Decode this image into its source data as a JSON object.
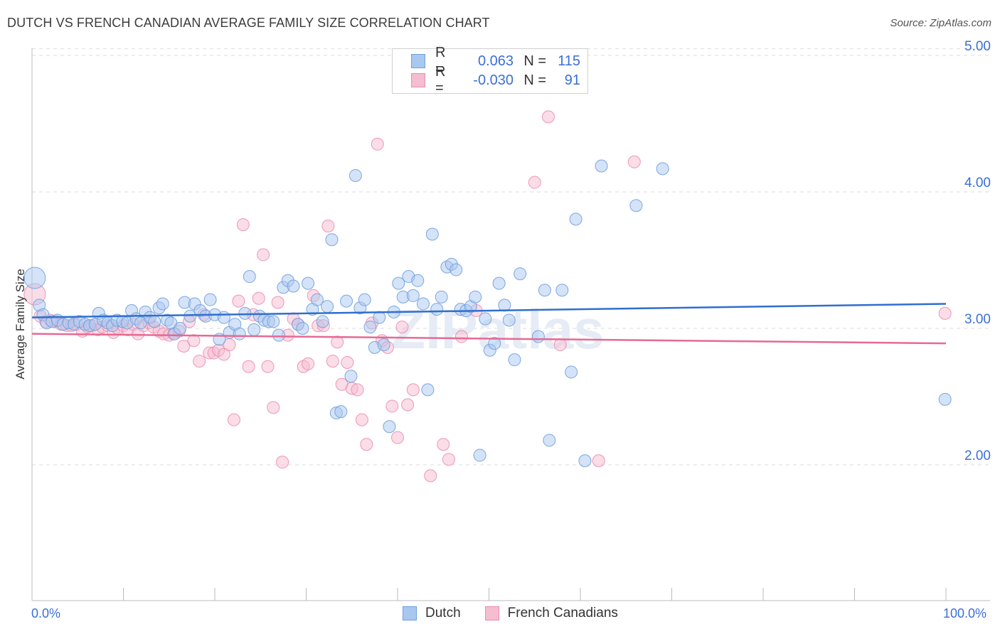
{
  "title": "DUTCH VS FRENCH CANADIAN AVERAGE FAMILY SIZE CORRELATION CHART",
  "source": "Source: ZipAtlas.com",
  "legend": {
    "rows": [
      {
        "r_label": "R =",
        "r_value": "0.063",
        "n_label": "N =",
        "n_value": "115"
      },
      {
        "r_label": "R =",
        "r_value": "-0.030",
        "n_label": "N =",
        "n_value": "91"
      }
    ]
  },
  "bottom_legend": {
    "dutch": "Dutch",
    "french": "French Canadians"
  },
  "colors": {
    "dutch_fill": "#a9c8f0",
    "dutch_stroke": "#6f9fe0",
    "dutch_line": "#2f6fce",
    "french_fill": "#f6bcd0",
    "french_stroke": "#ec8db0",
    "french_line": "#e56a94",
    "axis_text": "#3a6fd8"
  },
  "chart_data": {
    "type": "scatter",
    "title": "DUTCH VS FRENCH CANADIAN AVERAGE FAMILY SIZE CORRELATION CHART",
    "xlabel": "",
    "ylabel": "Average Family Size",
    "x_tick_labels": [
      "0.0%",
      "100.0%"
    ],
    "y_ticks": [
      2.0,
      3.0,
      4.0,
      5.0
    ],
    "y_tick_labels": [
      "2.00",
      "3.00",
      "4.00",
      "5.00"
    ],
    "xlim": [
      0,
      100
    ],
    "ylim": [
      1.0,
      5.05
    ],
    "grid": "horizontal dashed",
    "legend_position": "top-center",
    "watermark": "ZIPatlas",
    "series": [
      {
        "name": "Dutch",
        "trend": [
          [
            0,
            3.08
          ],
          [
            100,
            3.18
          ]
        ],
        "points": [
          [
            0.3,
            3.37
          ],
          [
            0.8,
            3.17
          ],
          [
            1.2,
            3.1
          ],
          [
            1.6,
            3.04
          ],
          [
            2.2,
            3.05
          ],
          [
            2.8,
            3.06
          ],
          [
            3.4,
            3.03
          ],
          [
            4.0,
            3.04
          ],
          [
            4.6,
            3.03
          ],
          [
            5.2,
            3.05
          ],
          [
            5.8,
            3.03
          ],
          [
            6.3,
            3.02
          ],
          [
            6.9,
            3.03
          ],
          [
            7.3,
            3.11
          ],
          [
            7.8,
            3.06
          ],
          [
            8.3,
            3.04
          ],
          [
            8.8,
            3.02
          ],
          [
            9.3,
            3.06
          ],
          [
            9.9,
            3.05
          ],
          [
            10.4,
            3.04
          ],
          [
            10.9,
            3.13
          ],
          [
            11.4,
            3.07
          ],
          [
            11.9,
            3.04
          ],
          [
            12.4,
            3.12
          ],
          [
            12.9,
            3.08
          ],
          [
            13.4,
            3.05
          ],
          [
            13.9,
            3.15
          ],
          [
            14.3,
            3.18
          ],
          [
            14.8,
            3.06
          ],
          [
            15.2,
            3.04
          ],
          [
            15.6,
            2.96
          ],
          [
            16.2,
            3.0
          ],
          [
            16.7,
            3.19
          ],
          [
            17.3,
            3.09
          ],
          [
            17.8,
            3.18
          ],
          [
            18.4,
            3.13
          ],
          [
            19.0,
            3.09
          ],
          [
            19.5,
            3.21
          ],
          [
            20.0,
            3.1
          ],
          [
            20.5,
            2.92
          ],
          [
            21.0,
            3.08
          ],
          [
            21.6,
            2.97
          ],
          [
            22.2,
            3.03
          ],
          [
            22.7,
            2.96
          ],
          [
            23.3,
            3.11
          ],
          [
            23.8,
            3.38
          ],
          [
            24.3,
            2.99
          ],
          [
            24.9,
            3.09
          ],
          [
            25.4,
            3.06
          ],
          [
            25.9,
            3.05
          ],
          [
            26.4,
            3.05
          ],
          [
            27.0,
            2.95
          ],
          [
            27.5,
            3.3
          ],
          [
            28.0,
            3.35
          ],
          [
            28.6,
            3.31
          ],
          [
            29.1,
            3.03
          ],
          [
            29.6,
            3.0
          ],
          [
            30.2,
            3.33
          ],
          [
            30.7,
            3.14
          ],
          [
            31.2,
            3.21
          ],
          [
            31.8,
            3.05
          ],
          [
            32.3,
            3.16
          ],
          [
            32.8,
            3.65
          ],
          [
            33.3,
            2.38
          ],
          [
            33.8,
            2.39
          ],
          [
            34.4,
            3.2
          ],
          [
            34.9,
            2.65
          ],
          [
            35.4,
            4.12
          ],
          [
            35.9,
            3.15
          ],
          [
            36.4,
            3.21
          ],
          [
            37.0,
            3.01
          ],
          [
            37.5,
            2.86
          ],
          [
            38.0,
            3.08
          ],
          [
            38.5,
            2.88
          ],
          [
            39.1,
            2.28
          ],
          [
            39.6,
            3.12
          ],
          [
            40.1,
            3.33
          ],
          [
            40.6,
            3.23
          ],
          [
            41.2,
            3.38
          ],
          [
            41.7,
            3.24
          ],
          [
            42.2,
            3.35
          ],
          [
            42.8,
            3.18
          ],
          [
            43.3,
            2.55
          ],
          [
            43.8,
            3.69
          ],
          [
            44.3,
            3.14
          ],
          [
            44.8,
            3.23
          ],
          [
            45.4,
            3.45
          ],
          [
            45.9,
            3.47
          ],
          [
            46.4,
            3.43
          ],
          [
            46.9,
            3.14
          ],
          [
            47.5,
            3.13
          ],
          [
            48.0,
            3.16
          ],
          [
            48.5,
            3.23
          ],
          [
            49.0,
            2.07
          ],
          [
            49.6,
            3.07
          ],
          [
            50.1,
            2.84
          ],
          [
            50.6,
            2.89
          ],
          [
            51.1,
            3.33
          ],
          [
            51.7,
            3.17
          ],
          [
            52.2,
            3.06
          ],
          [
            52.8,
            2.77
          ],
          [
            53.4,
            3.4
          ],
          [
            55.4,
            2.94
          ],
          [
            56.1,
            3.28
          ],
          [
            56.6,
            2.18
          ],
          [
            58.0,
            3.28
          ],
          [
            59.0,
            2.68
          ],
          [
            59.5,
            3.8
          ],
          [
            60.5,
            2.03
          ],
          [
            62.3,
            4.19
          ],
          [
            66.1,
            3.9
          ],
          [
            69.0,
            4.17
          ],
          [
            99.9,
            2.48
          ]
        ]
      },
      {
        "name": "French Canadians",
        "trend": [
          [
            0,
            2.96
          ],
          [
            100,
            2.89
          ]
        ],
        "points": [
          [
            0.3,
            3.25
          ],
          [
            0.9,
            3.09
          ],
          [
            1.5,
            3.05
          ],
          [
            2.0,
            3.06
          ],
          [
            2.6,
            3.05
          ],
          [
            3.2,
            3.03
          ],
          [
            3.8,
            3.02
          ],
          [
            4.3,
            3.02
          ],
          [
            4.9,
            3.03
          ],
          [
            5.5,
            2.98
          ],
          [
            6.1,
            3.01
          ],
          [
            6.6,
            3.02
          ],
          [
            7.2,
            2.99
          ],
          [
            7.7,
            3.01
          ],
          [
            8.3,
            3.02
          ],
          [
            8.9,
            2.97
          ],
          [
            9.4,
            3.0
          ],
          [
            10.0,
            3.02
          ],
          [
            10.5,
            2.99
          ],
          [
            11.1,
            3.03
          ],
          [
            11.6,
            2.96
          ],
          [
            12.2,
            3.02
          ],
          [
            12.8,
            3.04
          ],
          [
            13.3,
            3.01
          ],
          [
            13.9,
            2.98
          ],
          [
            14.4,
            2.96
          ],
          [
            15.0,
            2.95
          ],
          [
            15.5,
            2.96
          ],
          [
            16.1,
            2.98
          ],
          [
            16.6,
            2.87
          ],
          [
            17.2,
            3.05
          ],
          [
            17.7,
            2.91
          ],
          [
            18.3,
            2.76
          ],
          [
            18.8,
            3.1
          ],
          [
            19.4,
            2.82
          ],
          [
            19.9,
            2.82
          ],
          [
            20.4,
            2.84
          ],
          [
            21.0,
            2.81
          ],
          [
            21.6,
            2.88
          ],
          [
            22.1,
            2.33
          ],
          [
            22.6,
            3.2
          ],
          [
            23.1,
            3.76
          ],
          [
            23.7,
            2.72
          ],
          [
            24.2,
            3.1
          ],
          [
            24.8,
            3.22
          ],
          [
            25.3,
            3.54
          ],
          [
            25.8,
            2.72
          ],
          [
            26.4,
            2.42
          ],
          [
            26.9,
            3.19
          ],
          [
            27.4,
            2.02
          ],
          [
            28.0,
            2.95
          ],
          [
            28.6,
            3.07
          ],
          [
            29.1,
            3.03
          ],
          [
            29.7,
            2.72
          ],
          [
            30.2,
            2.74
          ],
          [
            30.8,
            3.24
          ],
          [
            31.3,
            3.02
          ],
          [
            31.9,
            3.02
          ],
          [
            32.4,
            3.75
          ],
          [
            32.9,
            2.76
          ],
          [
            33.4,
            2.9
          ],
          [
            33.9,
            2.59
          ],
          [
            34.5,
            2.75
          ],
          [
            35.0,
            2.56
          ],
          [
            35.6,
            2.55
          ],
          [
            36.1,
            2.33
          ],
          [
            36.6,
            2.15
          ],
          [
            37.2,
            3.04
          ],
          [
            37.8,
            4.35
          ],
          [
            38.3,
            2.91
          ],
          [
            38.9,
            2.86
          ],
          [
            39.4,
            2.43
          ],
          [
            40.0,
            2.2
          ],
          [
            40.5,
            3.01
          ],
          [
            41.1,
            2.44
          ],
          [
            41.7,
            2.55
          ],
          [
            43.6,
            1.92
          ],
          [
            45.0,
            2.15
          ],
          [
            45.6,
            2.04
          ],
          [
            47.0,
            2.94
          ],
          [
            48.6,
            3.13
          ],
          [
            55.0,
            4.07
          ],
          [
            56.5,
            4.55
          ],
          [
            57.8,
            2.88
          ],
          [
            62.0,
            2.03
          ],
          [
            65.9,
            4.22
          ],
          [
            99.9,
            3.11
          ]
        ]
      }
    ]
  }
}
